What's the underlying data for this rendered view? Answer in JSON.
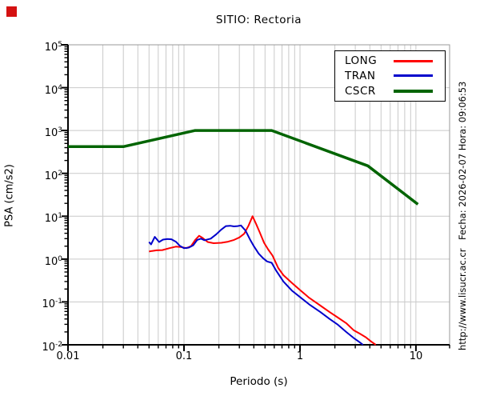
{
  "title": "SITIO: Rectoria",
  "axes": {
    "x_label": "Periodo (s)",
    "y_label": "PSA (cm/s2)",
    "x_tick_labels": [
      "0.01",
      "0.1",
      "1",
      "10"
    ],
    "x_tick_values": [
      0.01,
      0.1,
      1,
      10
    ],
    "y_tick_exponents": [
      5,
      4,
      3,
      2,
      1,
      0,
      -1,
      -2
    ]
  },
  "side_texts": {
    "datetime": "Fecha: 2026-02-07  Hora: 09:06:53",
    "url": "http://www.lisucr.ac.cr"
  },
  "legend": {
    "items": [
      {
        "label": "LONG",
        "color": "#ff0000"
      },
      {
        "label": "TRAN",
        "color": "#0000cc"
      },
      {
        "label": "CSCR",
        "color": "#006400"
      }
    ]
  },
  "colors": {
    "grid": "#c9c9c9",
    "frame": "#9a9a9a",
    "axis": "#000000",
    "background": "#ffffff",
    "corner_marker": "#d41111"
  },
  "chart_data": {
    "type": "line",
    "title": "SITIO: Rectoria",
    "xlabel": "Periodo (s)",
    "ylabel": "PSA (cm/s2)",
    "xscale": "log",
    "yscale": "log",
    "xlim": [
      0.01,
      19.5
    ],
    "ylim": [
      0.01,
      100000
    ],
    "grid": true,
    "legend_position": "top-right",
    "series": [
      {
        "name": "LONG",
        "color": "#ff0000",
        "width": 2,
        "points": [
          [
            0.05,
            1.5
          ],
          [
            0.053,
            1.55
          ],
          [
            0.058,
            1.6
          ],
          [
            0.065,
            1.62
          ],
          [
            0.075,
            1.8
          ],
          [
            0.085,
            1.95
          ],
          [
            0.095,
            1.9
          ],
          [
            0.105,
            1.8
          ],
          [
            0.115,
            2.0
          ],
          [
            0.125,
            2.8
          ],
          [
            0.135,
            3.5
          ],
          [
            0.145,
            3.1
          ],
          [
            0.16,
            2.5
          ],
          [
            0.18,
            2.35
          ],
          [
            0.21,
            2.4
          ],
          [
            0.24,
            2.55
          ],
          [
            0.27,
            2.8
          ],
          [
            0.3,
            3.2
          ],
          [
            0.33,
            3.9
          ],
          [
            0.36,
            6.0
          ],
          [
            0.39,
            10
          ],
          [
            0.42,
            6.5
          ],
          [
            0.45,
            4.2
          ],
          [
            0.49,
            2.4
          ],
          [
            0.53,
            1.7
          ],
          [
            0.58,
            1.2
          ],
          [
            0.65,
            0.62
          ],
          [
            0.72,
            0.42
          ],
          [
            0.85,
            0.28
          ],
          [
            1.0,
            0.19
          ],
          [
            1.2,
            0.125
          ],
          [
            1.5,
            0.082
          ],
          [
            1.8,
            0.058
          ],
          [
            2.1,
            0.044
          ],
          [
            2.5,
            0.032
          ],
          [
            2.9,
            0.022
          ],
          [
            3.3,
            0.018
          ],
          [
            3.7,
            0.015
          ],
          [
            4.1,
            0.012
          ],
          [
            4.5,
            0.01
          ]
        ]
      },
      {
        "name": "TRAN",
        "color": "#0000cc",
        "width": 2,
        "points": [
          [
            0.05,
            2.5
          ],
          [
            0.052,
            2.2
          ],
          [
            0.056,
            3.3
          ],
          [
            0.061,
            2.5
          ],
          [
            0.066,
            2.85
          ],
          [
            0.072,
            2.95
          ],
          [
            0.078,
            2.9
          ],
          [
            0.085,
            2.55
          ],
          [
            0.092,
            2.05
          ],
          [
            0.1,
            1.8
          ],
          [
            0.11,
            1.85
          ],
          [
            0.12,
            2.1
          ],
          [
            0.13,
            2.8
          ],
          [
            0.14,
            3.0
          ],
          [
            0.15,
            2.75
          ],
          [
            0.17,
            3.0
          ],
          [
            0.19,
            3.8
          ],
          [
            0.21,
            4.9
          ],
          [
            0.23,
            5.9
          ],
          [
            0.25,
            6.0
          ],
          [
            0.27,
            5.8
          ],
          [
            0.29,
            5.9
          ],
          [
            0.31,
            6.1
          ],
          [
            0.34,
            4.6
          ],
          [
            0.37,
            2.9
          ],
          [
            0.4,
            2.0
          ],
          [
            0.44,
            1.35
          ],
          [
            0.48,
            1.05
          ],
          [
            0.52,
            0.88
          ],
          [
            0.57,
            0.82
          ],
          [
            0.62,
            0.55
          ],
          [
            0.72,
            0.3
          ],
          [
            0.85,
            0.185
          ],
          [
            1.0,
            0.13
          ],
          [
            1.2,
            0.088
          ],
          [
            1.5,
            0.058
          ],
          [
            1.8,
            0.04
          ],
          [
            2.1,
            0.03
          ],
          [
            2.5,
            0.02
          ],
          [
            2.9,
            0.0145
          ],
          [
            3.2,
            0.012
          ],
          [
            3.5,
            0.01
          ]
        ]
      },
      {
        "name": "CSCR",
        "color": "#006400",
        "width": 3.5,
        "points": [
          [
            0.01,
            420
          ],
          [
            0.03,
            420
          ],
          [
            0.125,
            1000
          ],
          [
            0.57,
            1000
          ],
          [
            3.85,
            150
          ],
          [
            10.4,
            19
          ]
        ]
      }
    ]
  }
}
